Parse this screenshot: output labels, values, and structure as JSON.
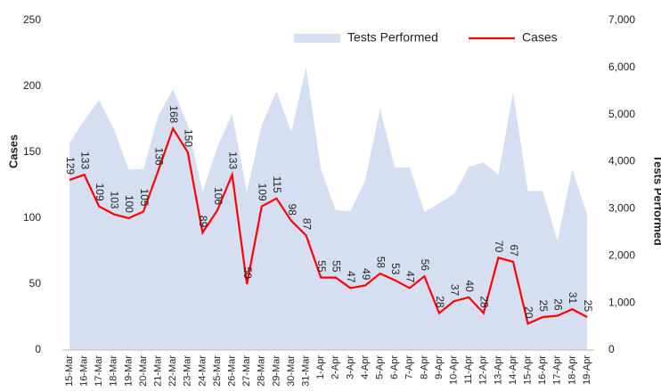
{
  "chart_data": {
    "type": "line",
    "categories": [
      "15-Mar",
      "16-Mar",
      "17-Mar",
      "18-Mar",
      "19-Mar",
      "20-Mar",
      "21-Mar",
      "22-Mar",
      "23-Mar",
      "24-Mar",
      "25-Mar",
      "26-Mar",
      "27-Mar",
      "28-Mar",
      "29-Mar",
      "30-Mar",
      "31-Mar",
      "1-Apr",
      "2-Apr",
      "3-Apr",
      "4-Apr",
      "5-Apr",
      "6-Apr",
      "7-Apr",
      "8-Apr",
      "9-Apr",
      "10-Apr",
      "11-Apr",
      "12-Apr",
      "13-Apr",
      "14-Apr",
      "15-Apr",
      "16-Apr",
      "17-Apr",
      "18-Apr",
      "19-Apr"
    ],
    "series": [
      {
        "name": "Tests Performed",
        "type": "area",
        "axis": "y2",
        "color": "#d6dff2",
        "values": [
          4400,
          4880,
          5310,
          4690,
          3840,
          3840,
          4970,
          5540,
          4780,
          3360,
          4310,
          5010,
          3360,
          4780,
          5500,
          4630,
          6010,
          3840,
          2970,
          2950,
          3610,
          5120,
          3880,
          3880,
          2930,
          3120,
          3310,
          3890,
          3990,
          3720,
          5480,
          3380,
          3380,
          2330,
          3840,
          2890
        ]
      },
      {
        "name": "Cases",
        "type": "line",
        "color": "#ff0000",
        "values": [
          129,
          133,
          109,
          103,
          100,
          105,
          136,
          168,
          150,
          89,
          106,
          133,
          50,
          109,
          115,
          98,
          87,
          55,
          55,
          47,
          49,
          58,
          53,
          47,
          56,
          28,
          37,
          40,
          28,
          70,
          67,
          20,
          25,
          26,
          31,
          25
        ]
      }
    ],
    "y_label": "Cases",
    "y2_label": "Tests Performed",
    "ylim": [
      0,
      250
    ],
    "yticks": [
      0,
      50,
      100,
      150,
      200,
      250
    ],
    "y2lim": [
      0,
      7000
    ],
    "y2ticks": [
      0,
      {
        "value": 1000,
        "label": "1,000"
      },
      {
        "value": 2000,
        "label": "2,000"
      },
      {
        "value": 3000,
        "label": "3,000"
      },
      {
        "value": 4000,
        "label": "4,000"
      },
      {
        "value": 5000,
        "label": "5,000"
      },
      {
        "value": 6000,
        "label": "6,000"
      },
      {
        "value": 7000,
        "label": "7,000"
      }
    ],
    "legend": "top-right"
  }
}
